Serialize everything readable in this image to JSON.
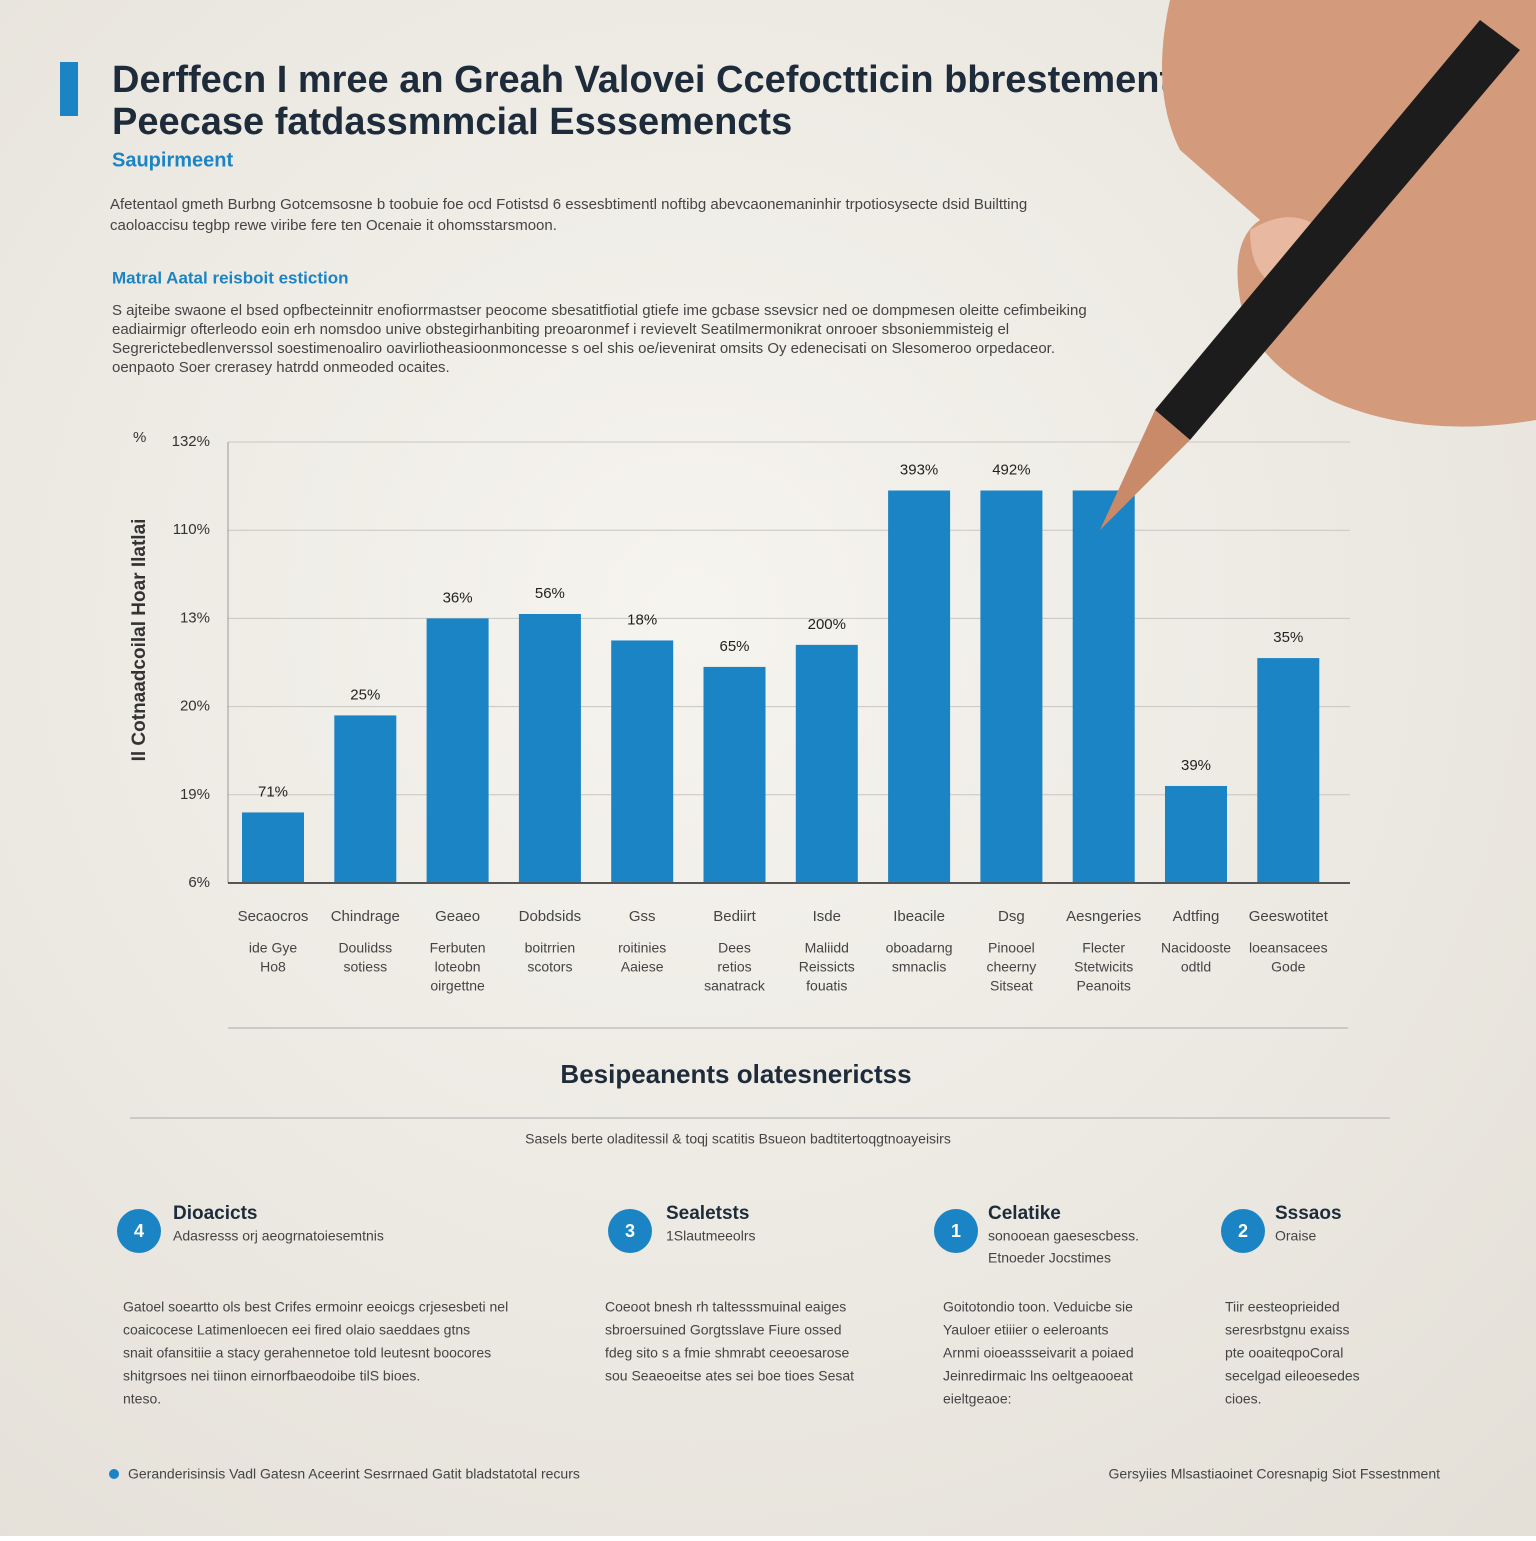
{
  "header": {
    "title_lines": [
      "Derffecn I mree an Greah Valovei Ccefoctticin bbrestement",
      "Peecase fatdassmmciaI Esssemencts"
    ],
    "subtitle": "Saupirmeent",
    "intro": [
      "Afetentaol gmeth Burbng Gotcemsosne b toobuie foe ocd Fotistsd 6 essesbtimentl noftibg abevcaonemaninhir trpotiosysecte dsid Builtting",
      "caoloaccisu tegbp rewe viribe fere ten Ocenaie it ohomsstarsmoon."
    ],
    "section_title": "Matral Aatal reisboit estiction",
    "section_text": [
      "S ajteibe swaone el bsed opfbecteinnitr enofiorrmastser peocome sbesatitfiotial gtiefe ime gcbase ssevsicr ned oe dompmesen oleitte cefimbeiking",
      "eadiairmigr ofterleodo eoin erh nomsdoo unive obstegirhanbiting preoaronmef i revievelt Seatilmermonikrat onrooer sbsoniemmisteig el",
      "Segrerictebedlenverssol soestimenoaliro oavirliotheasioonmoncesse s oel shis oe/ievenirat omsits Oy edenecisati on Slesomeroo orpedaceor.",
      "oenpaoto Soer crerasey hatrdd onmeoded ocaites."
    ]
  },
  "chart_data": {
    "type": "bar",
    "y_label": "Il Cotnaadcoilal Hoar Ilatlai",
    "y_unit_mark": "%",
    "color": "#1b84c4",
    "categories": [
      [
        "Secaocros",
        "ide Gye",
        "Ho8"
      ],
      [
        "Chindrage",
        "Doulidss",
        "sotiess"
      ],
      [
        "Geaeo",
        "Ferbuten",
        "loteobn",
        "oirgettne"
      ],
      [
        "Dobdsids",
        "boitrrien",
        "scotors"
      ],
      [
        "Gss",
        "roitinies",
        "Aaiese"
      ],
      [
        "Bediirt",
        "Dees",
        "retios",
        "sanatrack"
      ],
      [
        "Isde",
        "Maliidd",
        "Reissicts",
        "fouatis"
      ],
      [
        "Ibeacile",
        "oboadarng",
        "smnaclis"
      ],
      [
        "Dsg",
        "Pinooel",
        "cheerny",
        "Sitseat"
      ],
      [
        "Aesngeries",
        "Flecter",
        "Stetwicits",
        "Peanoits"
      ],
      [
        "Adtfing",
        "Nacidooste",
        "odtld"
      ],
      [
        "Geeswotitet",
        "loeansacees",
        "Gode"
      ]
    ],
    "values": [
      0.8,
      1.9,
      3.0,
      3.05,
      2.75,
      2.45,
      2.7,
      4.45,
      4.45,
      4.45,
      1.1,
      2.55
    ],
    "value_labels": [
      "71%",
      "25%",
      "36%",
      "56%",
      "18%",
      "65%",
      "200%",
      "393%",
      "492%",
      null,
      "39%",
      "35%"
    ],
    "ylim": [
      0,
      5
    ],
    "yticks": [
      0,
      1,
      2,
      3,
      4,
      5
    ],
    "ytick_texts": [
      "6%",
      "19%",
      "20%",
      "13%",
      "110%",
      "132%"
    ],
    "grid": true
  },
  "summary": {
    "title": "Besipeanents olatesnerictss",
    "caption": "Sasels berte oladitessil & toqj scatitis Bsueon badtitertoqgtnoayeisirs"
  },
  "features": [
    {
      "number": "4",
      "title": "Dioacicts",
      "sub": [
        "Adasresss orj aeogrnatoiesemtnis"
      ],
      "text": [
        "Gatoel soeartto ols best Crifes ermoinr eeoicgs crjesesbeti nel",
        "coaicocese Latimenloecen eei fired olaio saeddaes gtns",
        "snait ofansitiie a stacy gerahennetoe told leutesnt boocores",
        "shitgrsoes nei tiinon eirnorfbaeodoibe tilS bioes.",
        "nteso."
      ]
    },
    {
      "number": "3",
      "title": "Sealetsts",
      "sub": [
        "1Slautmeeolrs"
      ],
      "text": [
        "Coeoot bnesh rh taltesssmuinal eaiges",
        "sbroersuined Gorgtsslave Fiure ossed",
        "fdeg sito s a fmie shmrabt ceeoesarose",
        "sou Seaeoeitse ates sei boe tioes Sesat"
      ]
    },
    {
      "number": "1",
      "title": "Celatike",
      "sub": [
        "sonooean gaesescbess.",
        "Etnoeder Jocstimes"
      ],
      "text": [
        "Goitotondio toon. Veduicbe sie",
        "Yauloer etiiier o eeleroants",
        "Arnmi oioeassseivarit a poiaed",
        "Jeinredirmaic lns oeltgeaooeat",
        "eieltgeaoe:"
      ]
    },
    {
      "number": "2",
      "title": "Sssaos",
      "sub": [
        "Oraise"
      ],
      "text": [
        "Tiir eesteoprieided",
        "seresrbstgnu exaiss",
        "pte ooaiteqpoCoral",
        "secelgad eileoesedes",
        "cioes."
      ]
    }
  ],
  "footer": {
    "left": "Geranderisinsis Vadl Gatesn Aceerint Sesrrnaed Gatit bladstatotal recurs",
    "right": "Gersyiies Mlsastiaoinet Coresnapig Siot Fssestnment"
  }
}
